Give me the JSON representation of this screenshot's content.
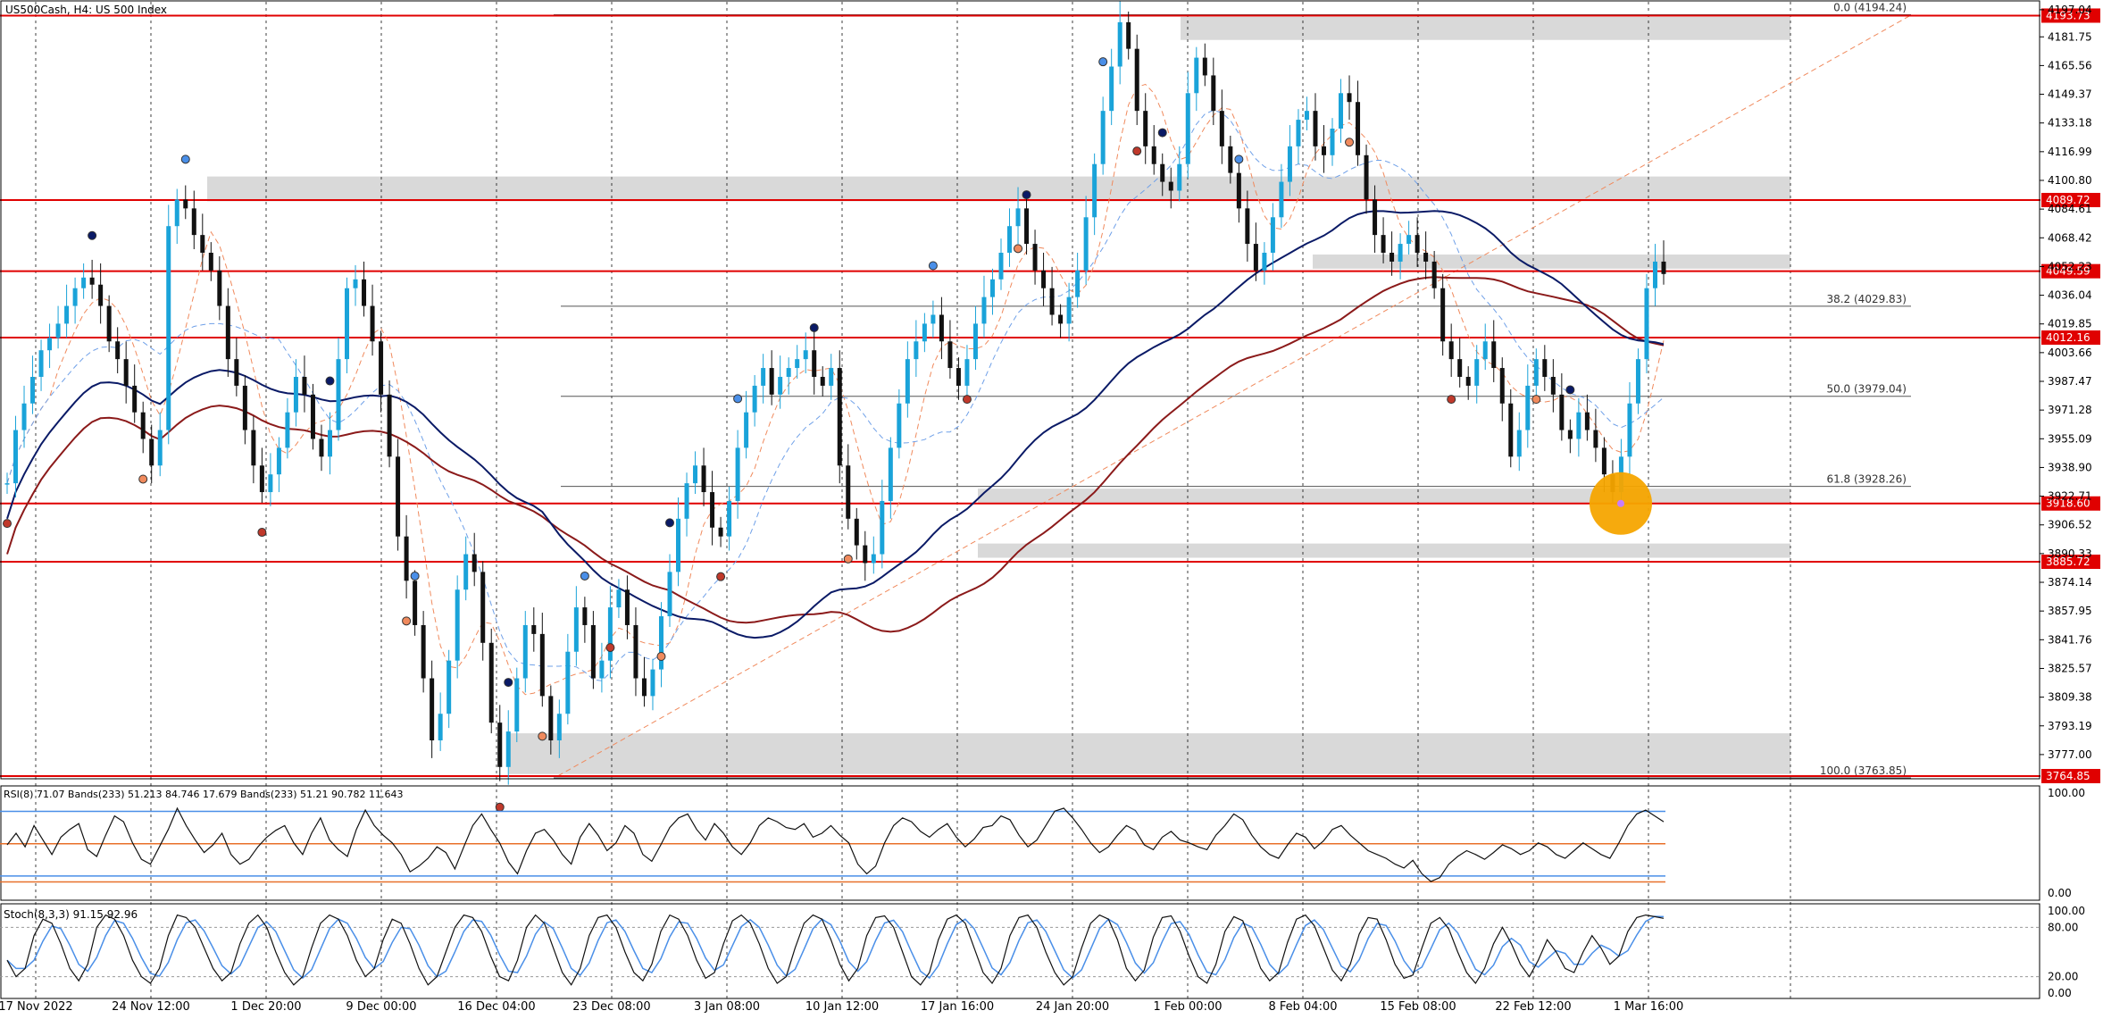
{
  "chart_data": {
    "type": "candlestick",
    "symbol_caption": "US500Cash, H4:  US 500 Index",
    "price_range": [
      3764.85,
      4197.0
    ],
    "x_tick_labels": [
      "17 Nov 2022",
      "24 Nov 12:00",
      "1 Dec 20:00",
      "9 Dec 00:00",
      "16 Dec 04:00",
      "23 Dec 08:00",
      "3 Jan 08:00",
      "10 Jan 12:00",
      "17 Jan 16:00",
      "24 Jan 20:00",
      "1 Feb 00:00",
      "8 Feb 04:00",
      "15 Feb 08:00",
      "22 Feb 12:00",
      "1 Mar 16:00"
    ],
    "y_tick_labels": [
      4197.04,
      4181.75,
      4165.56,
      4149.37,
      4133.18,
      4116.99,
      4100.8,
      4084.61,
      4068.42,
      4052.23,
      4036.04,
      4019.85,
      4003.66,
      3987.47,
      3971.28,
      3955.09,
      3938.9,
      3922.71,
      3906.52,
      3890.33,
      3874.14,
      3857.95,
      3841.76,
      3825.57,
      3809.38,
      3793.19,
      3777.0
    ],
    "resistance_levels": [
      {
        "price": 4193.73,
        "label": "4193.73"
      },
      {
        "price": 4089.72,
        "label": "4089.72"
      },
      {
        "price": 4049.59,
        "label": "4049.59"
      },
      {
        "price": 4012.16,
        "label": "4012.16"
      },
      {
        "price": 3918.6,
        "label": "3918.60"
      },
      {
        "price": 3885.72,
        "label": "3885.72"
      },
      {
        "price": 3764.85,
        "label": "3764.85"
      }
    ],
    "fibonacci_levels": [
      {
        "price": 4194.24,
        "label": "0.0 (4194.24)"
      },
      {
        "price": 4029.83,
        "label": "38.2 (4029.83)"
      },
      {
        "price": 3979.04,
        "label": "50.0 (3979.04)"
      },
      {
        "price": 3928.26,
        "label": "61.8 (3928.26)"
      },
      {
        "price": 3763.85,
        "label": "100.0 (3763.85)"
      }
    ],
    "supply_demand_zones": [
      {
        "from": 4180,
        "to": 4193
      },
      {
        "from": 4089,
        "to": 4103
      },
      {
        "from": 4051,
        "to": 4059
      },
      {
        "from": 3919,
        "to": 3927
      },
      {
        "from": 3888,
        "to": 3896
      },
      {
        "from": 3766,
        "to": 3789
      }
    ],
    "highlighted_low_price": 3918.6,
    "price_series": [
      3930,
      3960,
      3975,
      3990,
      4005,
      4012,
      4020,
      4030,
      4040,
      4046,
      4042,
      4030,
      4010,
      4000,
      3985,
      3970,
      3955,
      3940,
      3960,
      4075,
      4090,
      4085,
      4070,
      4060,
      4050,
      4030,
      4000,
      3985,
      3960,
      3940,
      3925,
      3935,
      3950,
      3970,
      3990,
      3980,
      3955,
      3945,
      3960,
      4000,
      4040,
      4045,
      4030,
      4010,
      3980,
      3945,
      3900,
      3875,
      3850,
      3820,
      3785,
      3800,
      3830,
      3870,
      3890,
      3880,
      3840,
      3795,
      3770,
      3790,
      3820,
      3850,
      3845,
      3810,
      3785,
      3800,
      3835,
      3860,
      3850,
      3820,
      3830,
      3860,
      3870,
      3850,
      3820,
      3810,
      3825,
      3855,
      3880,
      3910,
      3930,
      3940,
      3925,
      3905,
      3900,
      3920,
      3950,
      3970,
      3985,
      3995,
      3980,
      3990,
      3995,
      4000,
      4005,
      3990,
      3985,
      3995,
      3940,
      3910,
      3895,
      3885,
      3890,
      3920,
      3950,
      3975,
      4000,
      4010,
      4020,
      4025,
      4010,
      3995,
      3985,
      4000,
      4020,
      4035,
      4045,
      4060,
      4075,
      4085,
      4065,
      4050,
      4040,
      4025,
      4020,
      4035,
      4050,
      4080,
      4110,
      4140,
      4165,
      4190,
      4175,
      4140,
      4120,
      4110,
      4100,
      4095,
      4110,
      4150,
      4170,
      4160,
      4140,
      4120,
      4105,
      4085,
      4065,
      4050,
      4060,
      4080,
      4100,
      4120,
      4135,
      4140,
      4120,
      4115,
      4130,
      4150,
      4145,
      4115,
      4090,
      4070,
      4060,
      4055,
      4065,
      4070,
      4060,
      4055,
      4040,
      4010,
      4000,
      3990,
      3985,
      4000,
      4010,
      3995,
      3975,
      3945,
      3960,
      3985,
      4000,
      3990,
      3980,
      3960,
      3955,
      3970,
      3960,
      3950,
      3935,
      3925,
      3945,
      3975,
      4000,
      4040,
      4055,
      4048
    ],
    "moving_average_labels": [
      "blue MA",
      "red MA",
      "dashed fast MA",
      "dashed slow MA"
    ],
    "swing_markers": {
      "high_index": [
        10,
        21,
        38,
        48,
        59,
        68,
        78,
        86,
        95,
        109,
        120,
        129,
        136,
        145,
        184
      ],
      "low_index": [
        0,
        16,
        30,
        47,
        58,
        63,
        71,
        77,
        84,
        99,
        113,
        119,
        133,
        158,
        170,
        180
      ]
    },
    "rsi_panel": {
      "caption": "RSI(8) 71.07 Bands(233) 51.213 84.746  17.679 Bands(233) 51.21 90.782 11.643",
      "y_tick_labels": [
        "100.00",
        "0.00"
      ],
      "series": [
        50,
        62,
        48,
        70,
        55,
        40,
        58,
        66,
        72,
        45,
        38,
        60,
        80,
        74,
        52,
        35,
        30,
        48,
        66,
        88,
        70,
        55,
        42,
        50,
        62,
        40,
        30,
        35,
        48,
        58,
        65,
        70,
        52,
        40,
        62,
        78,
        55,
        45,
        38,
        66,
        86,
        70,
        60,
        52,
        40,
        22,
        28,
        36,
        48,
        42,
        25,
        48,
        70,
        82,
        66,
        52,
        32,
        20,
        44,
        62,
        66,
        55,
        40,
        30,
        58,
        72,
        60,
        44,
        52,
        70,
        62,
        40,
        33,
        50,
        68,
        78,
        82,
        66,
        55,
        72,
        62,
        48,
        40,
        52,
        70,
        78,
        74,
        68,
        66,
        72,
        58,
        62,
        70,
        60,
        52,
        30,
        20,
        28,
        52,
        70,
        78,
        74,
        64,
        58,
        66,
        72,
        58,
        48,
        56,
        68,
        70,
        80,
        76,
        60,
        48,
        55,
        70,
        85,
        88,
        78,
        66,
        52,
        42,
        48,
        60,
        70,
        65,
        50,
        45,
        58,
        64,
        55,
        52,
        48,
        45,
        60,
        70,
        82,
        76,
        60,
        48,
        40,
        36,
        50,
        62,
        58,
        46,
        54,
        66,
        70,
        60,
        52,
        44,
        40,
        36,
        30,
        26,
        34,
        20,
        12,
        16,
        30,
        38,
        44,
        40,
        35,
        42,
        50,
        46,
        40,
        44,
        52,
        48,
        40,
        36,
        44,
        52,
        46,
        40,
        36,
        52,
        70,
        82,
        86,
        80,
        74
      ]
    },
    "stoch_panel": {
      "caption": "Stoch(8,3,3) 91.15 92.96",
      "y_tick_labels": [
        "100.00",
        "80.00",
        "20.00",
        "0.00"
      ],
      "series": [
        40,
        20,
        30,
        70,
        90,
        85,
        60,
        30,
        15,
        35,
        80,
        95,
        90,
        70,
        40,
        20,
        12,
        30,
        70,
        95,
        92,
        80,
        55,
        30,
        15,
        25,
        60,
        85,
        95,
        80,
        50,
        25,
        10,
        20,
        55,
        85,
        95,
        90,
        70,
        40,
        20,
        30,
        65,
        90,
        85,
        60,
        30,
        10,
        20,
        50,
        80,
        95,
        92,
        75,
        45,
        20,
        15,
        40,
        80,
        95,
        85,
        55,
        25,
        10,
        30,
        70,
        92,
        95,
        80,
        50,
        25,
        15,
        35,
        75,
        95,
        90,
        70,
        40,
        18,
        25,
        60,
        88,
        95,
        85,
        60,
        30,
        12,
        20,
        55,
        85,
        95,
        90,
        65,
        35,
        15,
        30,
        70,
        92,
        94,
        80,
        50,
        20,
        10,
        25,
        65,
        90,
        95,
        85,
        55,
        25,
        12,
        30,
        70,
        92,
        95,
        80,
        50,
        25,
        10,
        20,
        55,
        85,
        95,
        90,
        65,
        30,
        15,
        28,
        68,
        92,
        94,
        75,
        45,
        20,
        12,
        35,
        75,
        93,
        88,
        60,
        30,
        15,
        25,
        62,
        90,
        95,
        82,
        55,
        28,
        15,
        35,
        72,
        92,
        90,
        65,
        35,
        18,
        22,
        55,
        85,
        92,
        78,
        50,
        25,
        12,
        30,
        60,
        80,
        60,
        35,
        20,
        40,
        65,
        50,
        30,
        25,
        50,
        70,
        55,
        35,
        45,
        75,
        92,
        95,
        93,
        91
      ]
    }
  }
}
